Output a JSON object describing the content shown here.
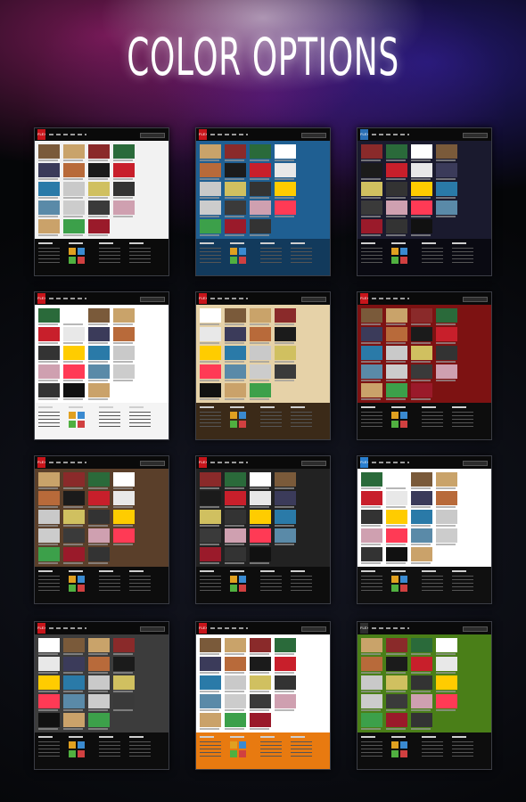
{
  "page": {
    "title": "COLOR OPTIONS"
  },
  "theme_label": "FLEX",
  "previews": [
    {
      "bg": "#f2f2f2",
      "footer": "#0b0b0b",
      "logo": "#c8151b"
    },
    {
      "bg": "#1f5f92",
      "footer": "#123a5c",
      "logo": "#c8151b"
    },
    {
      "bg": "#1a1a2e",
      "footer": "#0a0a12",
      "logo": "#2a6fb5"
    },
    {
      "bg": "#ffffff",
      "footer": "#f4f4f4",
      "logo": "#c8151b"
    },
    {
      "bg": "#e6d2a8",
      "footer": "#3b2a18",
      "logo": "#c8151b"
    },
    {
      "bg": "#7d1212",
      "footer": "#0d0d0d",
      "logo": "#c8151b"
    },
    {
      "bg": "#5a3f2a",
      "footer": "#0d0d0d",
      "logo": "#c8151b"
    },
    {
      "bg": "#222222",
      "footer": "#0d0d0d",
      "logo": "#c8151b"
    },
    {
      "bg": "#ffffff",
      "footer": "#101010",
      "logo": "#2a7fcf"
    },
    {
      "bg": "#3c3c3c",
      "footer": "#0d0d0d",
      "logo": "#c8151b"
    },
    {
      "bg": "#ffffff",
      "footer": "#e87a10",
      "logo": "#c8151b"
    },
    {
      "bg": "#4a7f18",
      "footer": "#0d0d0d",
      "logo": "#2e2e2e"
    }
  ]
}
